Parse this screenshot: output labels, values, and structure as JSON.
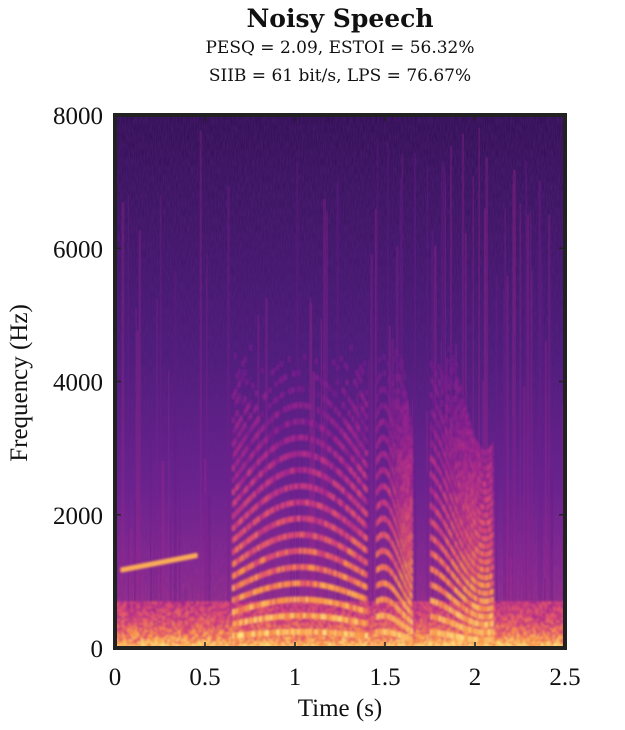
{
  "chart_data": {
    "type": "heatmap",
    "title": "Noisy Speech",
    "subtitle_lines": [
      "PESQ = 2.09, ESTOI = 56.32%",
      "SIIB = 61 bit/s, LPS = 76.67%"
    ],
    "xlabel": "Time (s)",
    "ylabel": "Frequency (Hz)",
    "xlim": [
      0,
      2.5
    ],
    "ylim": [
      0,
      8000
    ],
    "xticks": [
      0,
      0.5,
      1,
      1.5,
      2,
      2.5
    ],
    "xtick_labels": [
      "0",
      "0.5",
      "1",
      "1.5",
      "2",
      "2.5"
    ],
    "yticks": [
      0,
      2000,
      4000,
      6000,
      8000
    ],
    "ytick_labels": [
      "0",
      "2000",
      "4000",
      "6000",
      "8000"
    ],
    "colormap": "inferno-like (dark purple to bright yellow)",
    "colors": {
      "low": "#2a0a4a",
      "mid": "#8a1e9a",
      "high": "#ffe07a"
    },
    "grid": false,
    "description_features": {
      "low_band_energy_hz": [
        0,
        700
      ],
      "speech_segments_s": [
        [
          0.65,
          1.4
        ],
        [
          1.45,
          1.65
        ],
        [
          1.75,
          2.1
        ]
      ],
      "harmonic_fundamental_hz": 180
    }
  }
}
